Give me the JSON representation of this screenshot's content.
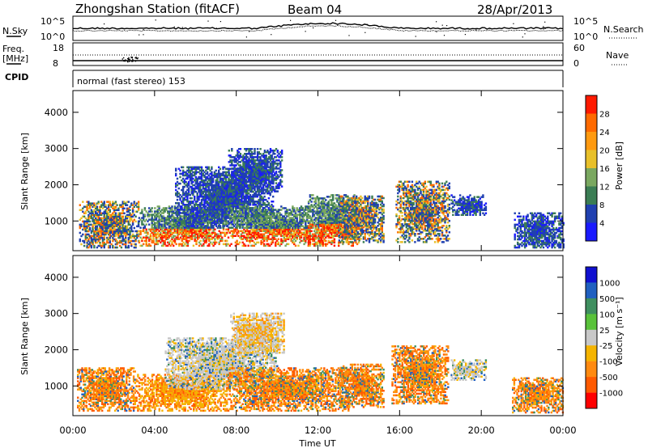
{
  "header": {
    "station": "Zhongshan Station (fitACF)",
    "beam": "Beam 04",
    "date": "28/Apr/2013"
  },
  "top_panels": {
    "nsky_label": "N.Sky",
    "nsearch_label": "N.Search",
    "noise_ticks": [
      "10^5",
      "10^0"
    ],
    "freq_label_line1": "Freq.",
    "freq_label_line2": "[MHz]",
    "freq_ticks": [
      "18",
      "8"
    ],
    "nave_ticks": [
      "60",
      "0"
    ],
    "nave_label": "Nave",
    "cpid_label": "CPID",
    "cpid_text": "normal (fast stereo) 153"
  },
  "chart_data": [
    {
      "type": "heatmap",
      "name": "power",
      "ylabel": "Slant Range [km]",
      "xlabel": "",
      "y_ticks": [
        "1000",
        "2000",
        "3000",
        "4000"
      ],
      "ylim": [
        180,
        4600
      ],
      "xlim": [
        0,
        24
      ],
      "colorbar_label": "Power [dB]",
      "colorbar_ticks": [
        "4",
        "8",
        "12",
        "16",
        "20",
        "24",
        "28"
      ],
      "colorbar_range": [
        0,
        30
      ],
      "colors": [
        "#1a1aff",
        "#2040b0",
        "#3b7d54",
        "#7aa860",
        "#e8c02a",
        "#ff9a10",
        "#ff6a00",
        "#ff1a00"
      ],
      "regions": [
        {
          "t0": 0.3,
          "t1": 3.2,
          "r0": 250,
          "r1": 1550,
          "pattern": "mixed"
        },
        {
          "t0": 3.2,
          "t1": 7.5,
          "r0": 300,
          "r1": 1400,
          "pattern": "strong"
        },
        {
          "t0": 5.0,
          "t1": 9.8,
          "r0": 800,
          "r1": 2500,
          "pattern": "weak"
        },
        {
          "t0": 7.6,
          "t1": 10.2,
          "r0": 1800,
          "r1": 3000,
          "pattern": "weak"
        },
        {
          "t0": 7.5,
          "t1": 12.4,
          "r0": 300,
          "r1": 1400,
          "pattern": "strong"
        },
        {
          "t0": 11.5,
          "t1": 14.0,
          "r0": 300,
          "r1": 1700,
          "pattern": "strong"
        },
        {
          "t0": 13.0,
          "t1": 15.2,
          "r0": 400,
          "r1": 1700,
          "pattern": "mixed"
        },
        {
          "t0": 15.8,
          "t1": 18.4,
          "r0": 400,
          "r1": 2100,
          "pattern": "mixed"
        },
        {
          "t0": 18.5,
          "t1": 20.2,
          "r0": 1150,
          "r1": 1700,
          "pattern": "weak"
        },
        {
          "t0": 21.6,
          "t1": 24.0,
          "r0": 250,
          "r1": 1200,
          "pattern": "weak"
        }
      ]
    },
    {
      "type": "heatmap",
      "name": "velocity",
      "ylabel": "Slant Range [km]",
      "xlabel": "Time UT",
      "x_ticks": [
        "00:00",
        "04:00",
        "08:00",
        "12:00",
        "16:00",
        "20:00",
        "00:00"
      ],
      "y_ticks": [
        "1000",
        "2000",
        "3000",
        "4000"
      ],
      "ylim": [
        180,
        4600
      ],
      "xlim": [
        0,
        24
      ],
      "colorbar_label": "Velocity [m s⁻¹]",
      "colorbar_ticks": [
        "-1000",
        "-500",
        "-100",
        "-25",
        "25",
        "100",
        "500",
        "1000"
      ],
      "colors": [
        "#ff0000",
        "#ff5a00",
        "#ff8a10",
        "#f5b400",
        "#c8c8c8",
        "#59c23a",
        "#3f8f5f",
        "#2060c0",
        "#1010d0"
      ],
      "regions": [
        {
          "t0": 0.2,
          "t1": 3.0,
          "r0": 300,
          "r1": 1500,
          "pattern": "neg"
        },
        {
          "t0": 3.0,
          "t1": 7.5,
          "r0": 300,
          "r1": 1300,
          "pattern": "negstrong"
        },
        {
          "t0": 4.5,
          "t1": 10.0,
          "r0": 900,
          "r1": 2300,
          "pattern": "grey"
        },
        {
          "t0": 7.7,
          "t1": 10.3,
          "r0": 1900,
          "r1": 3000,
          "pattern": "greyneg"
        },
        {
          "t0": 7.5,
          "t1": 13.5,
          "r0": 300,
          "r1": 1500,
          "pattern": "neg"
        },
        {
          "t0": 13.0,
          "t1": 15.2,
          "r0": 400,
          "r1": 1600,
          "pattern": "neg"
        },
        {
          "t0": 15.6,
          "t1": 18.4,
          "r0": 500,
          "r1": 2100,
          "pattern": "neg"
        },
        {
          "t0": 18.5,
          "t1": 20.2,
          "r0": 1150,
          "r1": 1700,
          "pattern": "grey"
        },
        {
          "t0": 21.5,
          "t1": 24.0,
          "r0": 250,
          "r1": 1200,
          "pattern": "neg"
        }
      ]
    }
  ]
}
